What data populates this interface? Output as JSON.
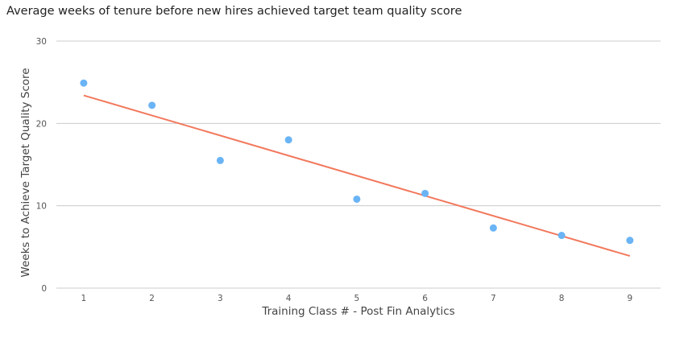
{
  "chart_data": {
    "type": "scatter",
    "title": "Average weeks of tenure before new hires achieved target team quality score",
    "xlabel": "Training Class # - Post Fin Analytics",
    "ylabel": "Weeks to Achieve Target Quality Score",
    "x": [
      1,
      2,
      3,
      4,
      5,
      6,
      7,
      8,
      9
    ],
    "y": [
      24.9,
      22.2,
      15.5,
      18.0,
      10.8,
      11.5,
      7.3,
      6.4,
      5.8
    ],
    "xlim": [
      0.6,
      9.45
    ],
    "ylim": [
      0,
      30
    ],
    "x_ticks": [
      "1",
      "2",
      "3",
      "4",
      "5",
      "6",
      "7",
      "8",
      "9"
    ],
    "y_ticks": [
      "0",
      "10",
      "20",
      "30"
    ],
    "trendline": {
      "type": "linear",
      "x": [
        1,
        9
      ],
      "y": [
        23.4,
        3.9
      ]
    },
    "grid": true,
    "point_color": "#6ab4f5",
    "trendline_color": "#f2785c",
    "grid_color": "#cccccc"
  }
}
